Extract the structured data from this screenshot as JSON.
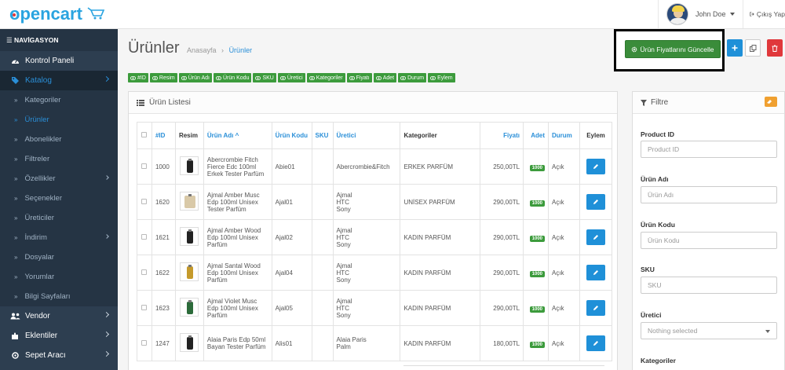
{
  "header": {
    "user_name": "John Doe",
    "logout_label": "Çıkış Yap"
  },
  "sidebar": {
    "title": "NAVİGASYON",
    "items": [
      {
        "label": "Kontrol Paneli",
        "icon": "dashboard-icon"
      },
      {
        "label": "Katalog",
        "icon": "tag-icon",
        "active": true
      }
    ],
    "sub_items": [
      "Kategoriler",
      "Ürünler",
      "Abonelikler",
      "Filtreler",
      "Özellikler",
      "Seçenekler",
      "Üreticiler",
      "İndirim",
      "Dosyalar",
      "Yorumlar",
      "Bilgi Sayfaları"
    ],
    "bottom_items": [
      {
        "label": "Vendor",
        "icon": "users-icon"
      },
      {
        "label": "Eklentiler",
        "icon": "puzzle-icon"
      },
      {
        "label": "Sepet Aracı",
        "icon": "cart-icon"
      }
    ]
  },
  "page": {
    "title": "Ürünler",
    "breadcrumb_home": "Anasayfa",
    "breadcrumb_current": "Ürünler",
    "update_prices_label": "Ürün Fiyatlarını Güncelle"
  },
  "column_toggles": [
    "#ID",
    "Resim",
    "Ürün Adı",
    "Ürün Kodu",
    "SKU",
    "Üretici",
    "Kategoriler",
    "Fiyatı",
    "Adet",
    "Durum",
    "Eylem"
  ],
  "product_list": {
    "title": "Ürün Listesi",
    "columns": {
      "id": "#ID",
      "image": "Resim",
      "name": "Ürün Adı ^",
      "code": "Ürün Kodu",
      "sku": "SKU",
      "manufacturer": "Üretici",
      "categories": "Kategoriler",
      "price": "Fiyatı",
      "qty": "Adet",
      "status": "Durum",
      "action": "Eylem"
    },
    "rows": [
      {
        "id": "1000",
        "name": "Abercrombie Fitch Fierce Edc 100ml Erkek Tester Parfüm",
        "code": "Abie01",
        "manufacturer": "Abercrombie&Fitch",
        "category": "ERKEK PARFÜM",
        "price": "250,00TL",
        "qty": "1000",
        "status": "Açık",
        "thumb": "dark"
      },
      {
        "id": "1620",
        "name": "Ajmal Amber Musc Edp 100ml Unisex Tester Parfüm",
        "code": "Ajal01",
        "manufacturer": "Ajmal\nHTC\nSony",
        "category": "UNİSEX PARFÜM",
        "price": "290,00TL",
        "qty": "1000",
        "status": "Açık",
        "thumb": "light"
      },
      {
        "id": "1621",
        "name": "Ajmal Amber Wood Edp 100ml Unisex Parfüm",
        "code": "Ajal02",
        "manufacturer": "Ajmal\nHTC\nSony",
        "category": "KADIN PARFÜM",
        "price": "290,00TL",
        "qty": "1000",
        "status": "Açık",
        "thumb": "dark"
      },
      {
        "id": "1622",
        "name": "Ajmal Santal Wood Edp 100ml Unisex Parfüm",
        "code": "Ajal04",
        "manufacturer": "Ajmal\nHTC\nSony",
        "category": "KADIN PARFÜM",
        "price": "290,00TL",
        "qty": "1000",
        "status": "Açık",
        "thumb": "gold"
      },
      {
        "id": "1623",
        "name": "Ajmal Violet Musc Edp 100ml Unisex Parfüm",
        "code": "Ajal05",
        "manufacturer": "Ajmal\nHTC\nSony",
        "category": "KADIN PARFÜM",
        "price": "290,00TL",
        "qty": "1000",
        "status": "Açık",
        "thumb": "green"
      },
      {
        "id": "1247",
        "name": "Alaia Paris Edp 50ml Bayan Tester Parfüm",
        "code": "Alis01",
        "manufacturer": "Alaia Paris\nPalm",
        "category": "KADIN PARFÜM",
        "price": "180,00TL",
        "qty": "1000",
        "status": "Açık",
        "thumb": "dark"
      }
    ]
  },
  "filter": {
    "title": "Filtre",
    "fields": [
      {
        "label": "Product ID",
        "placeholder": "Product ID"
      },
      {
        "label": "Ürün Adı",
        "placeholder": "Ürün Adı"
      },
      {
        "label": "Ürün Kodu",
        "placeholder": "Ürün Kodu"
      },
      {
        "label": "SKU",
        "placeholder": "SKU"
      },
      {
        "label": "Üretici",
        "placeholder": "Nothing selected"
      },
      {
        "label": "Kategoriler",
        "placeholder": ""
      }
    ]
  },
  "colors": {
    "sidebar_bg": "#2d3e50",
    "accent_blue": "#1f90d8",
    "green": "#3c9b3c",
    "red": "#e0383b",
    "orange": "#f0a030"
  }
}
